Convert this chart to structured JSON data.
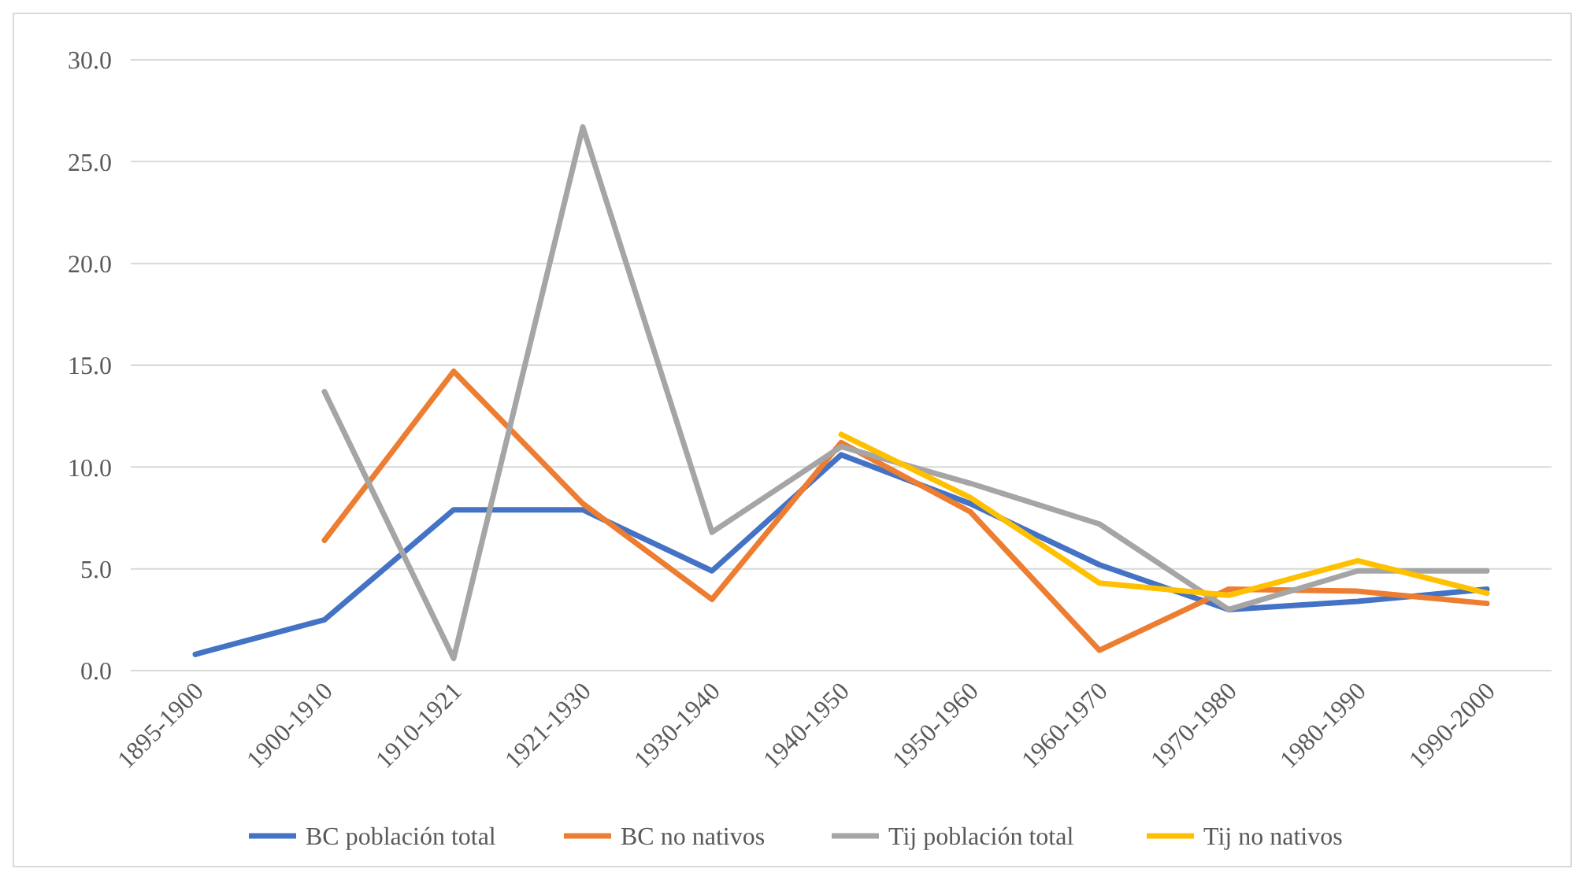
{
  "chart_data": {
    "type": "line",
    "categories": [
      "1895-1900",
      "1900-1910",
      "1910-1921",
      "1921-1930",
      "1930-1940",
      "1940-1950",
      "1950-1960",
      "1960-1970",
      "1970-1980",
      "1980-1990",
      "1990-2000"
    ],
    "series": [
      {
        "name": "BC población total",
        "color": "#4472c4",
        "values": [
          0.8,
          2.5,
          7.9,
          7.9,
          4.9,
          10.6,
          8.2,
          5.2,
          3.0,
          3.4,
          4.0
        ]
      },
      {
        "name": "BC no nativos",
        "color": "#ed7d31",
        "values": [
          null,
          6.4,
          14.7,
          8.2,
          3.5,
          11.2,
          7.8,
          1.0,
          4.0,
          3.9,
          3.3
        ]
      },
      {
        "name": "Tij población total",
        "color": "#a5a5a5",
        "values": [
          null,
          13.7,
          0.6,
          26.7,
          6.8,
          11.0,
          9.2,
          7.2,
          3.0,
          4.9,
          4.9
        ]
      },
      {
        "name": "Tij no nativos",
        "color": "#ffc000",
        "values": [
          null,
          null,
          null,
          null,
          null,
          11.6,
          8.5,
          4.3,
          3.7,
          5.4,
          3.8
        ]
      }
    ],
    "ylim": [
      0,
      30
    ],
    "yticks": [
      {
        "value": 0,
        "label": "0.0"
      },
      {
        "value": 5,
        "label": "5.0"
      },
      {
        "value": 10,
        "label": "10.0"
      },
      {
        "value": 15,
        "label": "15.0"
      },
      {
        "value": 20,
        "label": "20.0"
      },
      {
        "value": 25,
        "label": "25.0"
      },
      {
        "value": 30,
        "label": "30.0"
      }
    ],
    "grid": "y",
    "legend": "bottom",
    "marker": "none",
    "line_style": "solid"
  }
}
